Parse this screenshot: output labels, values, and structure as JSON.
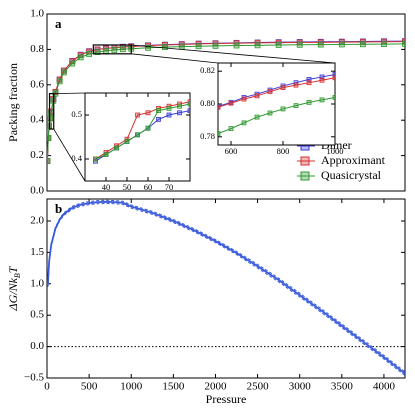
{
  "chart_data": [
    {
      "type": "line",
      "label": "a",
      "ylabel": "Packing fraction",
      "markers": true,
      "legend": "lower right",
      "xlim": [
        0,
        4250
      ],
      "ylim": [
        0,
        1
      ],
      "yticks": [
        {
          "value": 0,
          "label": "0.0"
        },
        0.2,
        0.4,
        0.6,
        0.8,
        {
          "value": 1,
          "label": "1.0"
        }
      ],
      "x": [
        5,
        15,
        25,
        35,
        50,
        75,
        100,
        150,
        200,
        300,
        400,
        500,
        600,
        700,
        800,
        900,
        1000,
        1200,
        1400,
        1600,
        1800,
        2000,
        2250,
        2500,
        2750,
        3000,
        3250,
        3500,
        3750,
        4000,
        4250
      ],
      "series": [
        {
          "name": "Dimer",
          "color": "#3b3bd6",
          "values": [
            0.17,
            0.3,
            0.37,
            0.41,
            0.445,
            0.52,
            0.56,
            0.63,
            0.68,
            0.735,
            0.77,
            0.79,
            0.8,
            0.806,
            0.811,
            0.815,
            0.818,
            0.823,
            0.827,
            0.83,
            0.833,
            0.835,
            0.837,
            0.839,
            0.841,
            0.842,
            0.843,
            0.844,
            0.845,
            0.846,
            0.847
          ]
        },
        {
          "name": "Approximant",
          "color": "#d63030",
          "values": [
            0.17,
            0.3,
            0.37,
            0.41,
            0.45,
            0.52,
            0.56,
            0.63,
            0.68,
            0.733,
            0.768,
            0.788,
            0.799,
            0.805,
            0.81,
            0.813,
            0.816,
            0.821,
            0.825,
            0.828,
            0.831,
            0.833,
            0.835,
            0.837,
            0.838,
            0.839,
            0.84,
            0.841,
            0.842,
            0.843,
            0.844
          ]
        },
        {
          "name": "Quasicrystal",
          "color": "#2f9a2f",
          "values": [
            0.17,
            0.3,
            0.37,
            0.41,
            0.44,
            0.51,
            0.55,
            0.62,
            0.67,
            0.72,
            0.755,
            0.774,
            0.785,
            0.792,
            0.797,
            0.801,
            0.804,
            0.809,
            0.813,
            0.816,
            0.818,
            0.82,
            0.822,
            0.823,
            0.825,
            0.826,
            0.827,
            0.828,
            0.829,
            0.83,
            0.831
          ]
        }
      ]
    },
    {
      "type": "line",
      "inset": true,
      "markers": true,
      "xlim": [
        30,
        80
      ],
      "ylim": [
        0.35,
        0.55
      ],
      "xticks": [
        40,
        50,
        60,
        70
      ],
      "yticks": [
        0.4,
        0.5
      ],
      "x": [
        35,
        40,
        45,
        50,
        55,
        60,
        65,
        70,
        75,
        80
      ],
      "series": [
        {
          "color": "#3b3bd6",
          "values": [
            0.395,
            0.41,
            0.425,
            0.44,
            0.455,
            0.47,
            0.49,
            0.5,
            0.505,
            0.51
          ]
        },
        {
          "color": "#d63030",
          "values": [
            0.4,
            0.415,
            0.43,
            0.445,
            0.5,
            0.505,
            0.515,
            0.52,
            0.525,
            0.53
          ]
        },
        {
          "color": "#2f9a2f",
          "values": [
            0.4,
            0.41,
            0.425,
            0.44,
            0.455,
            0.47,
            0.51,
            0.515,
            0.52,
            0.525
          ]
        }
      ]
    },
    {
      "type": "line",
      "inset": true,
      "markers": true,
      "xlim": [
        550,
        1000
      ],
      "ylim": [
        0.775,
        0.825
      ],
      "xticks": [
        600,
        800,
        1000
      ],
      "yticks": [
        0.78,
        {
          "value": 0.8,
          "label": "0.80"
        },
        0.82
      ],
      "x": [
        550,
        600,
        650,
        700,
        750,
        800,
        850,
        900,
        950,
        1000
      ],
      "series": [
        {
          "color": "#3b3bd6",
          "values": [
            0.7985,
            0.801,
            0.804,
            0.806,
            0.8085,
            0.811,
            0.813,
            0.815,
            0.8165,
            0.818
          ]
        },
        {
          "color": "#d63030",
          "values": [
            0.798,
            0.8005,
            0.803,
            0.805,
            0.8075,
            0.81,
            0.8115,
            0.813,
            0.8145,
            0.816
          ]
        },
        {
          "color": "#2f9a2f",
          "values": [
            0.782,
            0.785,
            0.7885,
            0.792,
            0.7945,
            0.797,
            0.799,
            0.801,
            0.8025,
            0.804
          ]
        }
      ]
    },
    {
      "type": "line",
      "label": "b",
      "ylabel_parts": [
        "ΔG/Nk",
        "B",
        "T"
      ],
      "xlabel": "Pressure",
      "xlim": [
        0,
        4250
      ],
      "ylim": [
        -0.5,
        2.35
      ],
      "hline": 0,
      "xticks": [
        0,
        500,
        1000,
        1500,
        2000,
        2500,
        3000,
        3500,
        4000
      ],
      "yticks": [
        {
          "value": -0.5,
          "label": "−0.5"
        },
        {
          "value": 0,
          "label": "0.0"
        },
        0.5,
        {
          "value": 1,
          "label": "1.0"
        },
        1.5,
        {
          "value": 2,
          "label": "2.0"
        }
      ],
      "x": [
        10,
        25,
        50,
        100,
        150,
        200,
        300,
        400,
        500,
        600,
        700,
        800,
        900,
        1000,
        1250,
        1500,
        1750,
        2000,
        2250,
        2500,
        2750,
        3000,
        3250,
        3500,
        3750,
        4000,
        4250
      ],
      "series": [
        {
          "color": "#3b5bdb",
          "values": [
            0.97,
            1.35,
            1.62,
            1.88,
            2.02,
            2.11,
            2.21,
            2.26,
            2.285,
            2.3,
            2.305,
            2.3,
            2.29,
            2.23,
            2.13,
            2.0,
            1.85,
            1.68,
            1.49,
            1.28,
            1.06,
            0.82,
            0.58,
            0.33,
            0.08,
            -0.17,
            -0.43
          ]
        },
        {
          "color": "#3b5bdb",
          "dashed": true,
          "values": [
            0.99,
            1.37,
            1.64,
            1.9,
            2.04,
            2.13,
            2.235,
            2.285,
            2.31,
            2.325,
            2.33,
            2.325,
            2.315,
            2.255,
            2.155,
            2.025,
            1.875,
            1.705,
            1.515,
            1.31,
            1.09,
            0.85,
            0.61,
            0.36,
            0.11,
            -0.14,
            -0.4
          ]
        },
        {
          "color": "#3b5bdb",
          "dashed": true,
          "values": [
            0.95,
            1.33,
            1.6,
            1.86,
            2.0,
            2.09,
            2.185,
            2.235,
            2.26,
            2.275,
            2.28,
            2.275,
            2.265,
            2.205,
            2.105,
            1.975,
            1.825,
            1.655,
            1.465,
            1.25,
            1.03,
            0.79,
            0.55,
            0.3,
            0.05,
            -0.2,
            -0.46
          ]
        }
      ]
    }
  ]
}
